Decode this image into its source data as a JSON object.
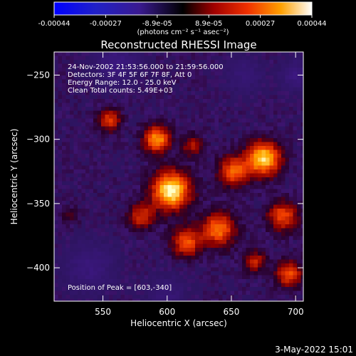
{
  "chart_data": {
    "type": "heatmap",
    "title": "Reconstructed RHESSI Image",
    "xlabel": "Heliocentric X (arcsec)",
    "ylabel": "Heliocentric Y (arcsec)",
    "xlim": [
      512,
      706
    ],
    "ylim": [
      -426,
      -232
    ],
    "x_ticks": [
      550,
      600,
      650,
      700
    ],
    "y_ticks": [
      -250,
      -300,
      -350,
      -400
    ],
    "colorbar": {
      "ticks": [
        "-0.00044",
        "-0.00027",
        "-8.9e-05",
        "8.9e-05",
        "0.00027",
        "0.00044"
      ],
      "unit_label": "(photons cm⁻² s⁻¹ asec⁻²)",
      "range": [
        -0.00044,
        0.00044
      ]
    },
    "annotations": [
      "24-Nov-2002 21:53:56.000 to 21:59:56.000",
      "Detectors: 3F 4F 5F 6F 7F 8F, Att 0",
      "Energy Range: 12.0 - 25.0 keV",
      "Clean     Total counts: 5.49E+03"
    ],
    "peak_label": "Position of Peak = [603,-340]",
    "peak": {
      "x": 603,
      "y": -340
    },
    "sources": [
      {
        "x": 603,
        "y": -340,
        "amp": 1.0,
        "sigma": 10
      },
      {
        "x": 675,
        "y": -315,
        "amp": 0.9,
        "sigma": 9
      },
      {
        "x": 652,
        "y": -325,
        "amp": 0.6,
        "sigma": 8
      },
      {
        "x": 592,
        "y": -300,
        "amp": 0.75,
        "sigma": 7
      },
      {
        "x": 640,
        "y": -370,
        "amp": 0.65,
        "sigma": 9
      },
      {
        "x": 690,
        "y": -360,
        "amp": 0.55,
        "sigma": 8
      },
      {
        "x": 615,
        "y": -380,
        "amp": 0.55,
        "sigma": 8
      },
      {
        "x": 695,
        "y": -405,
        "amp": 0.55,
        "sigma": 7
      },
      {
        "x": 555,
        "y": -285,
        "amp": 0.5,
        "sigma": 6
      },
      {
        "x": 580,
        "y": -360,
        "amp": 0.45,
        "sigma": 7
      },
      {
        "x": 668,
        "y": -395,
        "amp": 0.4,
        "sigma": 6
      },
      {
        "x": 620,
        "y": -305,
        "amp": 0.35,
        "sigma": 6
      },
      {
        "x": 525,
        "y": -360,
        "amp": 0.15,
        "sigma": 5
      },
      {
        "x": 560,
        "y": -240,
        "amp": -0.35,
        "sigma": 12
      },
      {
        "x": 540,
        "y": -400,
        "amp": -0.3,
        "sigma": 14
      },
      {
        "x": 660,
        "y": -250,
        "amp": -0.25,
        "sigma": 10
      },
      {
        "x": 700,
        "y": -250,
        "amp": -0.35,
        "sigma": 8
      },
      {
        "x": 600,
        "y": -420,
        "amp": -0.25,
        "sigma": 10
      }
    ]
  },
  "footer": {
    "date": "3-May-2022 15:01"
  }
}
